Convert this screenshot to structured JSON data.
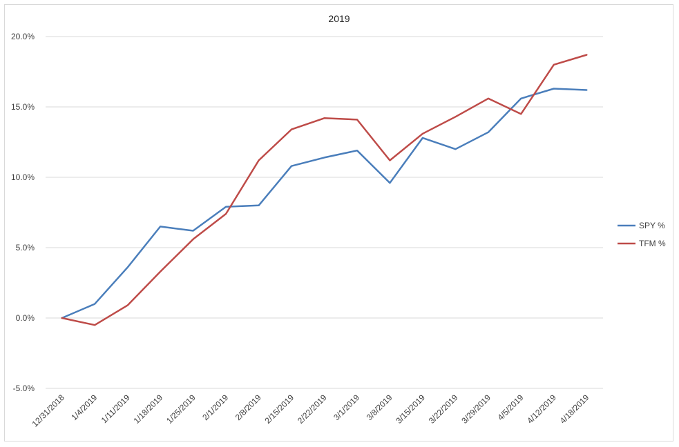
{
  "chart_data": {
    "type": "line",
    "title": "2019",
    "categories": [
      "12/31/2018",
      "1/4/2019",
      "1/11/2019",
      "1/18/2019",
      "1/25/2019",
      "2/1/2019",
      "2/8/2019",
      "2/15/2019",
      "2/22/2019",
      "3/1/2019",
      "3/8/2019",
      "3/15/2019",
      "3/22/2019",
      "3/29/2019",
      "4/5/2019",
      "4/12/2019",
      "4/18/2019"
    ],
    "y_ticks": [
      "-5.0%",
      "0.0%",
      "5.0%",
      "10.0%",
      "15.0%",
      "20.0%"
    ],
    "ylim": [
      -5,
      20
    ],
    "y_unit": "percent",
    "grid": true,
    "legend_position": "right",
    "series": [
      {
        "name": "SPY %",
        "color": "#4a7ebb",
        "values": [
          0.0,
          1.0,
          3.6,
          6.5,
          6.2,
          7.9,
          8.0,
          10.8,
          11.4,
          11.9,
          9.6,
          12.8,
          12.0,
          13.2,
          15.6,
          16.3,
          16.2
        ]
      },
      {
        "name": "TFM %",
        "color": "#be4b48",
        "values": [
          0.0,
          -0.5,
          0.9,
          3.3,
          5.6,
          7.4,
          11.2,
          13.4,
          14.2,
          14.1,
          11.2,
          13.1,
          14.3,
          15.6,
          14.5,
          18.0,
          18.7
        ]
      }
    ]
  }
}
